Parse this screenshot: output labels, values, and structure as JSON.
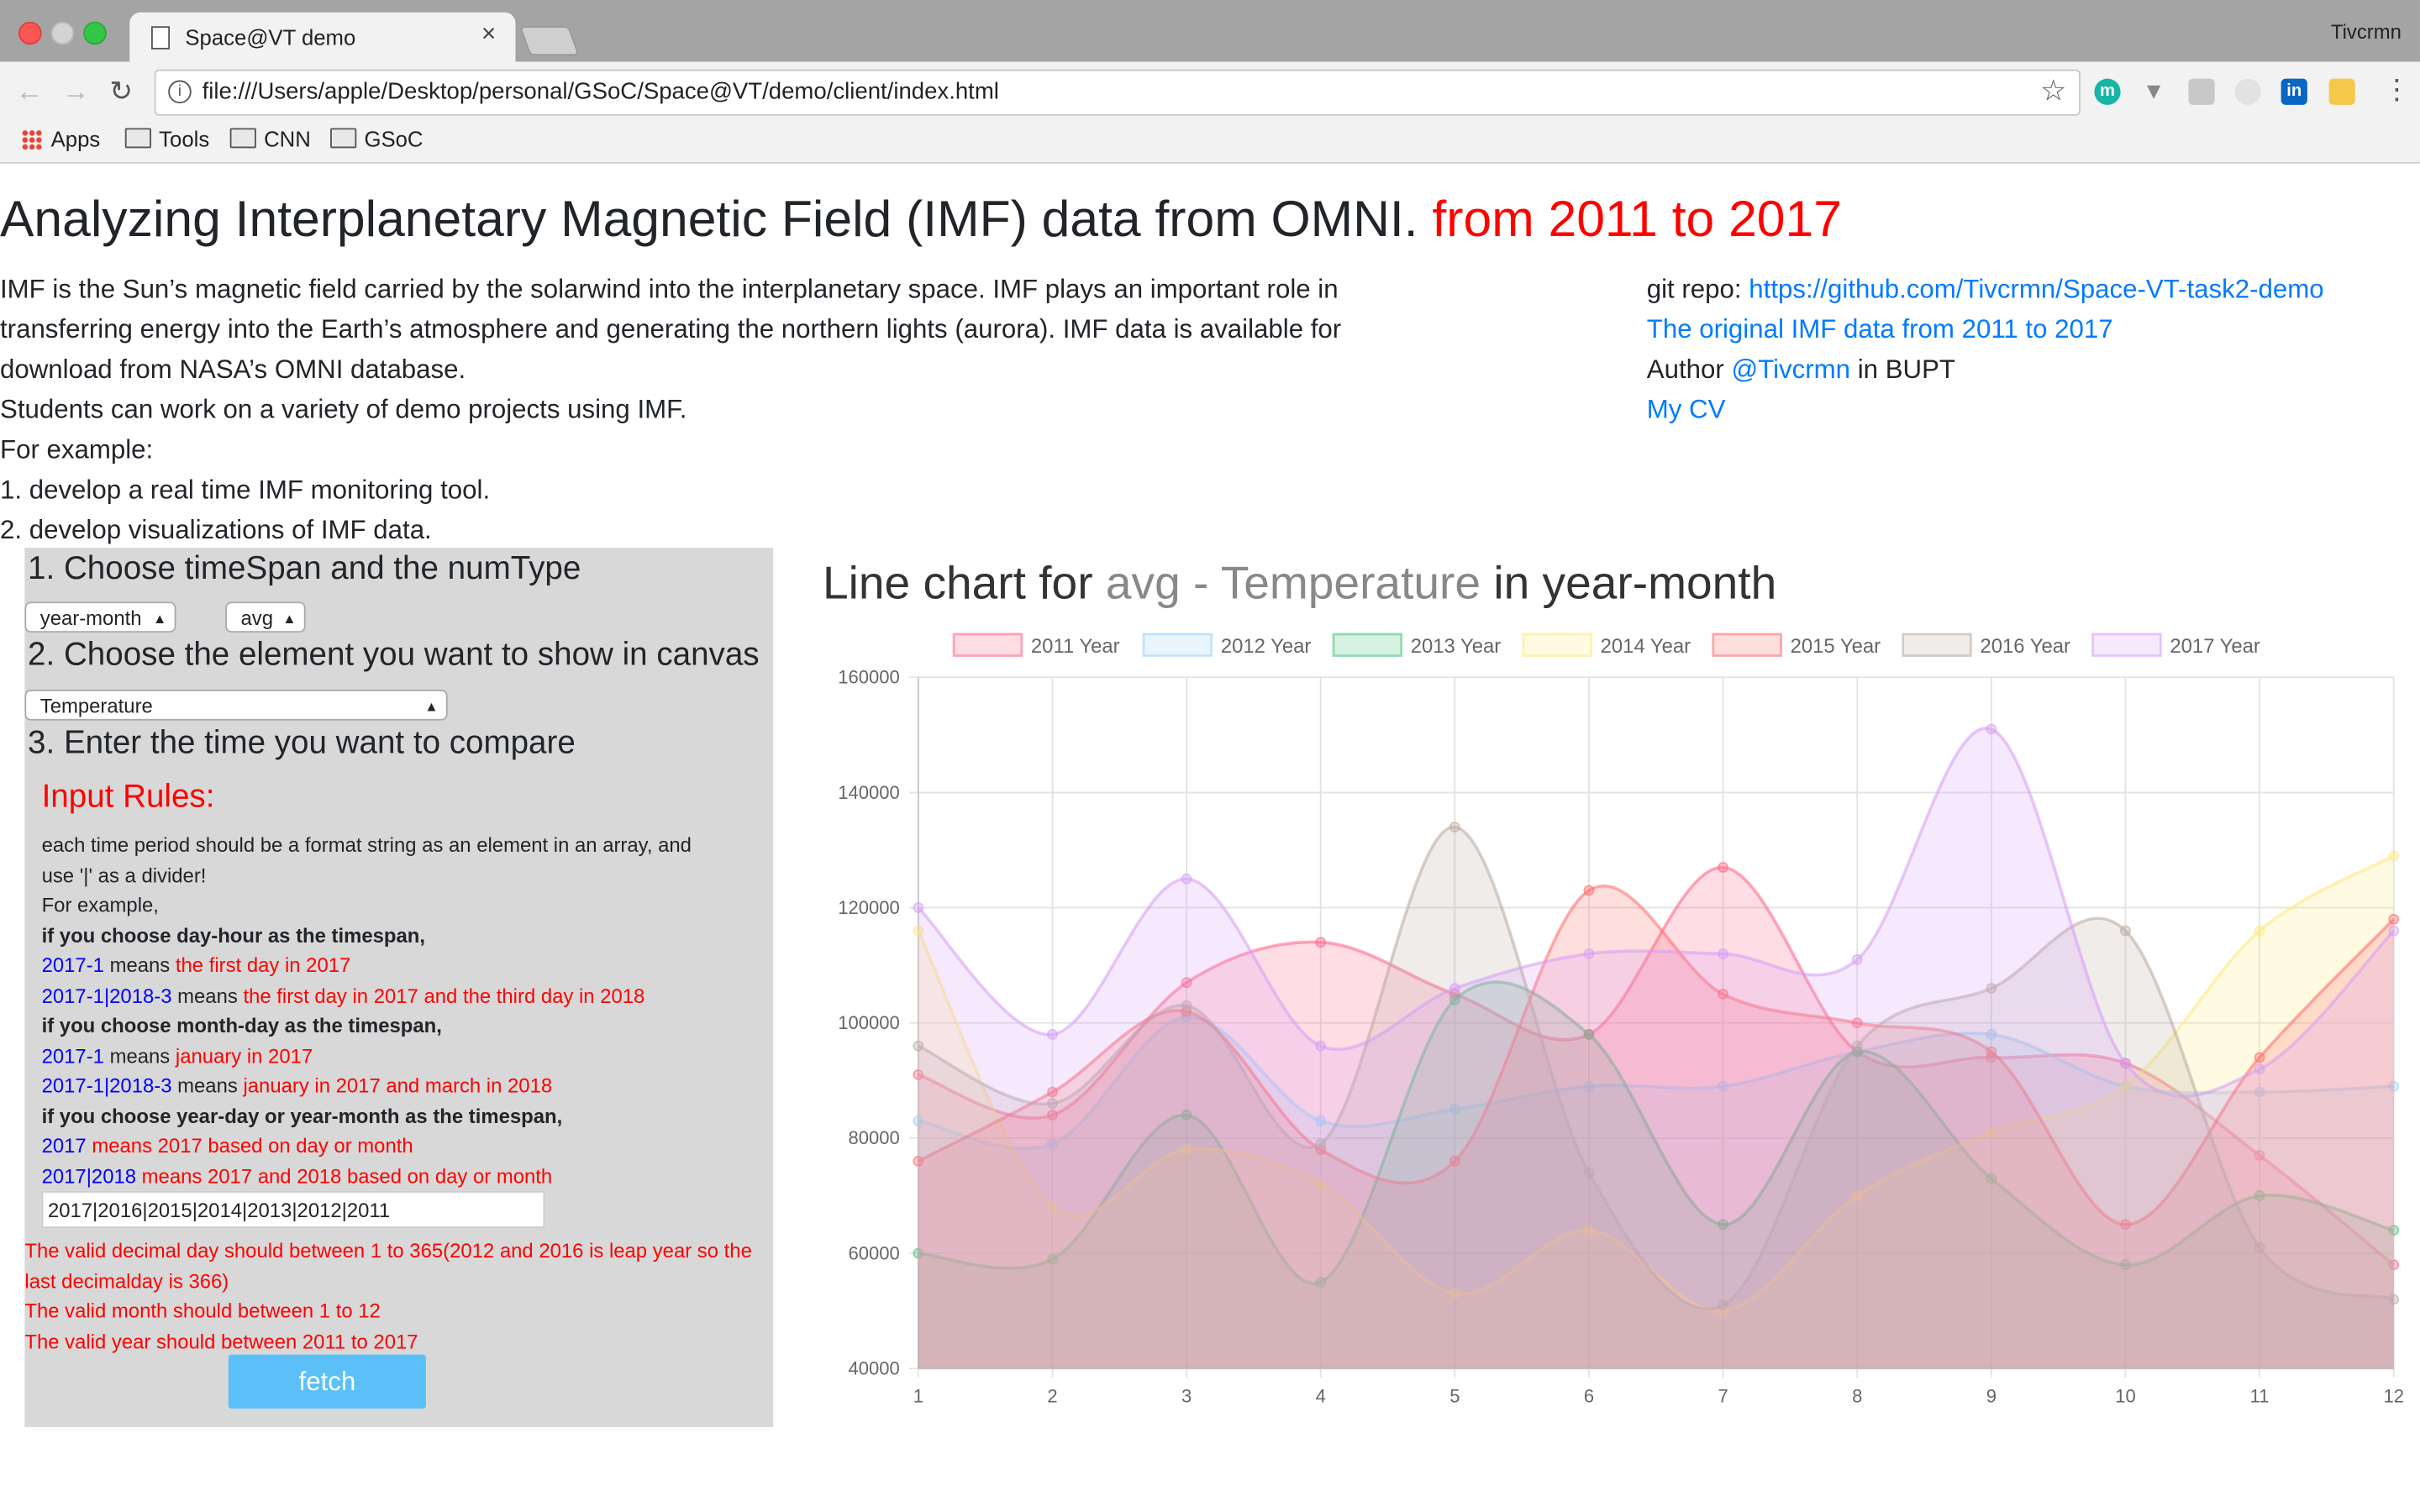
{
  "browser": {
    "tab_title": "Space@VT demo",
    "tab_close": "×",
    "profile_name": "Tivcrmn",
    "url": "file:///Users/apple/Desktop/personal/GSoC/Space@VT/demo/client/index.html",
    "bookmarks": [
      "Apps",
      "Tools",
      "CNN",
      "GSoC"
    ]
  },
  "header": {
    "title_main": "Analyzing Interplanetary Magnetic Field (IMF) data from OMNI.",
    "title_range": "from 2011 to 2017"
  },
  "description": {
    "lines": [
      "IMF is the Sun’s magnetic field carried by the solarwind into the interplanetary space. IMF plays an important role in transferring energy into the Earth’s atmosphere and generating the northern lights (aurora). IMF data is available for download from NASA’s OMNI database.",
      "Students can work on a variety of demo projects using IMF.",
      "For example:",
      "1. develop a real time IMF monitoring tool.",
      "2. develop visualizations of IMF data."
    ]
  },
  "links": {
    "repo_label": "git repo:",
    "repo_url": "https://github.com/Tivcrmn/Space-VT-task2-demo",
    "original_data": "The original IMF data from 2011 to 2017",
    "author_label": "Author",
    "author_handle": "@Tivcrmn",
    "author_suffix": "in BUPT",
    "cv": "My CV"
  },
  "controls": {
    "step1": "1. Choose timeSpan and the numType",
    "timespan_value": "year-month",
    "numtype_value": "avg",
    "step2": "2. Choose the element you want to show in canvas",
    "element_value": "Temperature",
    "step3": "3. Enter the time you want to compare",
    "rules_title": "Input Rules:",
    "rules": {
      "r1": "each time period should be a format string as an element in an array, and",
      "r2": "use '|' as a divider!",
      "r3": "For example,",
      "r4": "if you choose day-hour as the timespan,",
      "r5a": "2017-1",
      "r5b": " means ",
      "r5c": "the first day in 2017",
      "r6a": "2017-1|2018-3",
      "r6b": " means ",
      "r6c": "the first day in 2017 and the third day in 2018",
      "r7": "if you choose month-day as the timespan,",
      "r8a": "2017-1",
      "r8b": " means ",
      "r8c": "january in 2017",
      "r9a": "2017-1|2018-3",
      "r9b": " means ",
      "r9c": "january in 2017 and march in 2018",
      "r10": "if you choose year-day or year-month as the timespan,",
      "r11a": "2017",
      "r11b": " means 2017 based on day or month",
      "r12a": "2017|2018",
      "r12b": " means 2017 and 2018 based on day or month"
    },
    "time_input_value": "2017|2016|2015|2014|2013|2012|2011",
    "valid": {
      "v1": "The valid decimal day should between 1 to 365(2012 and 2016 is leap year so the last decimalday is 366)",
      "v2": "The valid month should between 1 to 12",
      "v3": "The valid year should between 2011 to 2017"
    },
    "fetch_label": "fetch"
  },
  "chart_title": {
    "prefix": "Line chart for",
    "highlight": "avg - Temperature",
    "suffix": "in year-month"
  },
  "chart_data": {
    "type": "area",
    "title": "Line chart for avg - Temperature in year-month",
    "x": [
      1,
      2,
      3,
      4,
      5,
      6,
      7,
      8,
      9,
      10,
      11,
      12
    ],
    "ylim": [
      40000,
      160000
    ],
    "yticks": [
      40000,
      60000,
      80000,
      100000,
      120000,
      140000,
      160000
    ],
    "grid": true,
    "legend_position": "top",
    "series": [
      {
        "name": "2011 Year",
        "color": "#ff6384",
        "values": [
          91000,
          84000,
          107000,
          114000,
          105000,
          98000,
          127000,
          95000,
          94000,
          93000,
          77000,
          58000
        ]
      },
      {
        "name": "2012 Year",
        "color": "#9ad0f5",
        "values": [
          83000,
          79000,
          101000,
          83000,
          85000,
          89000,
          89000,
          95000,
          98000,
          89000,
          88000,
          89000
        ]
      },
      {
        "name": "2013 Year",
        "color": "#4bc07e",
        "values": [
          60000,
          59000,
          84000,
          55000,
          104000,
          98000,
          65000,
          95000,
          73000,
          58000,
          70000,
          64000
        ]
      },
      {
        "name": "2014 Year",
        "color": "#ffe87a",
        "values": [
          116000,
          68000,
          78000,
          72000,
          53000,
          64000,
          50000,
          70000,
          81000,
          89000,
          116000,
          129000
        ]
      },
      {
        "name": "2015 Year",
        "color": "#ff6b6b",
        "values": [
          76000,
          88000,
          102000,
          78000,
          76000,
          123000,
          105000,
          100000,
          95000,
          65000,
          94000,
          118000
        ]
      },
      {
        "name": "2016 Year",
        "color": "#b8aaa0",
        "values": [
          96000,
          86000,
          103000,
          79000,
          134000,
          74000,
          51000,
          96000,
          106000,
          116000,
          61000,
          52000
        ]
      },
      {
        "name": "2017 Year",
        "color": "#d59bf5",
        "values": [
          120000,
          98000,
          125000,
          96000,
          106000,
          112000,
          112000,
          111000,
          151000,
          93000,
          92000,
          116000
        ]
      }
    ]
  }
}
